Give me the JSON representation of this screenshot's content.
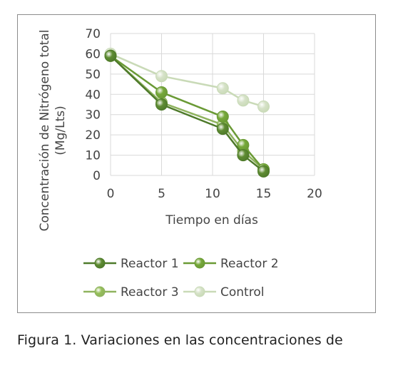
{
  "caption": "Figura 1. Variaciones en las concentraciones de",
  "chart_data": {
    "type": "line",
    "xlabel": "Tiempo en días",
    "ylabel_line1": "Concentración de Nitrógeno total",
    "ylabel_line2": "(Mg/Lts)",
    "xlim": [
      0,
      20
    ],
    "ylim": [
      0,
      70
    ],
    "xticks": [
      "0",
      "5",
      "10",
      "15",
      "20"
    ],
    "yticks": [
      "0",
      "10",
      "20",
      "30",
      "40",
      "50",
      "60",
      "70"
    ],
    "grid": true,
    "legend_position": "bottom",
    "series": [
      {
        "name": "Reactor 1",
        "color": "#4e7a2a",
        "fill": "#5f8c33",
        "x": [
          0,
          5,
          11,
          13,
          15
        ],
        "y": [
          59,
          35,
          23,
          10,
          2
        ]
      },
      {
        "name": "Reactor 2",
        "color": "#6a9a35",
        "fill": "#76a83a",
        "x": [
          0,
          5,
          11,
          13,
          15
        ],
        "y": [
          59,
          41,
          29,
          15,
          3
        ]
      },
      {
        "name": "Reactor 3",
        "color": "#8fb35e",
        "fill": "#96bf5a",
        "x": [
          0,
          5,
          11,
          13,
          15
        ],
        "y": [
          59,
          36,
          25,
          12,
          3
        ]
      },
      {
        "name": "Control",
        "color": "#c9dab7",
        "fill": "#d6e2c8",
        "x": [
          0,
          5,
          11,
          13,
          15
        ],
        "y": [
          60,
          49,
          43,
          37,
          34
        ]
      }
    ]
  }
}
